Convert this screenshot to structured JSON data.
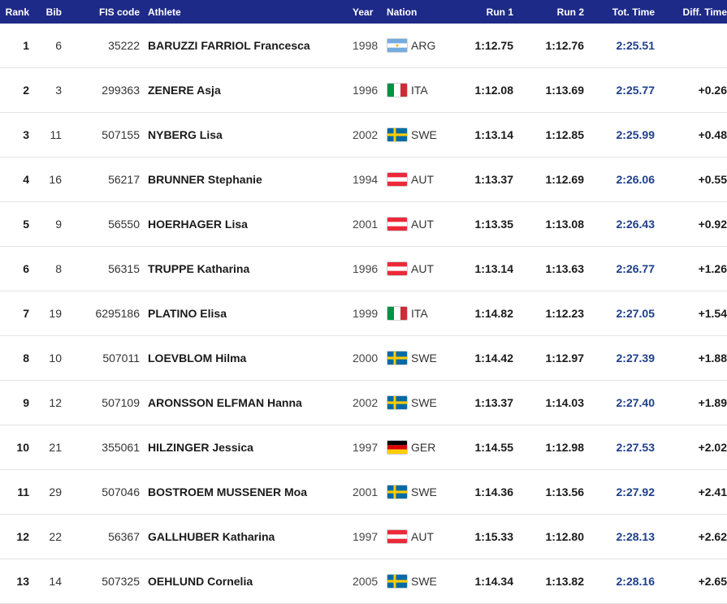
{
  "headers": {
    "rank": "Rank",
    "bib": "Bib",
    "fis_code": "FIS code",
    "athlete": "Athlete",
    "year": "Year",
    "nation": "Nation",
    "run1": "Run 1",
    "run2": "Run 2",
    "total": "Tot. Time",
    "diff": "Diff. Time"
  },
  "colors": {
    "header_bg": "#1e2a87",
    "total_time": "#1e3f8a"
  },
  "rows": [
    {
      "rank": "1",
      "bib": "6",
      "fis": "35222",
      "athlete": "BARUZZI FARRIOL Francesca",
      "year": "1998",
      "flag": "arg-flag-icon",
      "nation": "ARG",
      "run1": "1:12.75",
      "run2": "1:12.76",
      "total": "2:25.51",
      "diff": ""
    },
    {
      "rank": "2",
      "bib": "3",
      "fis": "299363",
      "athlete": "ZENERE Asja",
      "year": "1996",
      "flag": "ita-flag-icon",
      "nation": "ITA",
      "run1": "1:12.08",
      "run2": "1:13.69",
      "total": "2:25.77",
      "diff": "+0.26"
    },
    {
      "rank": "3",
      "bib": "11",
      "fis": "507155",
      "athlete": "NYBERG Lisa",
      "year": "2002",
      "flag": "swe-flag-icon",
      "nation": "SWE",
      "run1": "1:13.14",
      "run2": "1:12.85",
      "total": "2:25.99",
      "diff": "+0.48"
    },
    {
      "rank": "4",
      "bib": "16",
      "fis": "56217",
      "athlete": "BRUNNER Stephanie",
      "year": "1994",
      "flag": "aut-flag-icon",
      "nation": "AUT",
      "run1": "1:13.37",
      "run2": "1:12.69",
      "total": "2:26.06",
      "diff": "+0.55"
    },
    {
      "rank": "5",
      "bib": "9",
      "fis": "56550",
      "athlete": "HOERHAGER Lisa",
      "year": "2001",
      "flag": "aut-flag-icon",
      "nation": "AUT",
      "run1": "1:13.35",
      "run2": "1:13.08",
      "total": "2:26.43",
      "diff": "+0.92"
    },
    {
      "rank": "6",
      "bib": "8",
      "fis": "56315",
      "athlete": "TRUPPE Katharina",
      "year": "1996",
      "flag": "aut-flag-icon",
      "nation": "AUT",
      "run1": "1:13.14",
      "run2": "1:13.63",
      "total": "2:26.77",
      "diff": "+1.26"
    },
    {
      "rank": "7",
      "bib": "19",
      "fis": "6295186",
      "athlete": "PLATINO Elisa",
      "year": "1999",
      "flag": "ita-flag-icon",
      "nation": "ITA",
      "run1": "1:14.82",
      "run2": "1:12.23",
      "total": "2:27.05",
      "diff": "+1.54"
    },
    {
      "rank": "8",
      "bib": "10",
      "fis": "507011",
      "athlete": "LOEVBLOM Hilma",
      "year": "2000",
      "flag": "swe-flag-icon",
      "nation": "SWE",
      "run1": "1:14.42",
      "run2": "1:12.97",
      "total": "2:27.39",
      "diff": "+1.88"
    },
    {
      "rank": "9",
      "bib": "12",
      "fis": "507109",
      "athlete": "ARONSSON ELFMAN Hanna",
      "year": "2002",
      "flag": "swe-flag-icon",
      "nation": "SWE",
      "run1": "1:13.37",
      "run2": "1:14.03",
      "total": "2:27.40",
      "diff": "+1.89"
    },
    {
      "rank": "10",
      "bib": "21",
      "fis": "355061",
      "athlete": "HILZINGER Jessica",
      "year": "1997",
      "flag": "ger-flag-icon",
      "nation": "GER",
      "run1": "1:14.55",
      "run2": "1:12.98",
      "total": "2:27.53",
      "diff": "+2.02"
    },
    {
      "rank": "11",
      "bib": "29",
      "fis": "507046",
      "athlete": "BOSTROEM MUSSENER Moa",
      "year": "2001",
      "flag": "swe-flag-icon",
      "nation": "SWE",
      "run1": "1:14.36",
      "run2": "1:13.56",
      "total": "2:27.92",
      "diff": "+2.41"
    },
    {
      "rank": "12",
      "bib": "22",
      "fis": "56367",
      "athlete": "GALLHUBER Katharina",
      "year": "1997",
      "flag": "aut-flag-icon",
      "nation": "AUT",
      "run1": "1:15.33",
      "run2": "1:12.80",
      "total": "2:28.13",
      "diff": "+2.62"
    },
    {
      "rank": "13",
      "bib": "14",
      "fis": "507325",
      "athlete": "OEHLUND Cornelia",
      "year": "2005",
      "flag": "swe-flag-icon",
      "nation": "SWE",
      "run1": "1:14.34",
      "run2": "1:13.82",
      "total": "2:28.16",
      "diff": "+2.65"
    }
  ]
}
